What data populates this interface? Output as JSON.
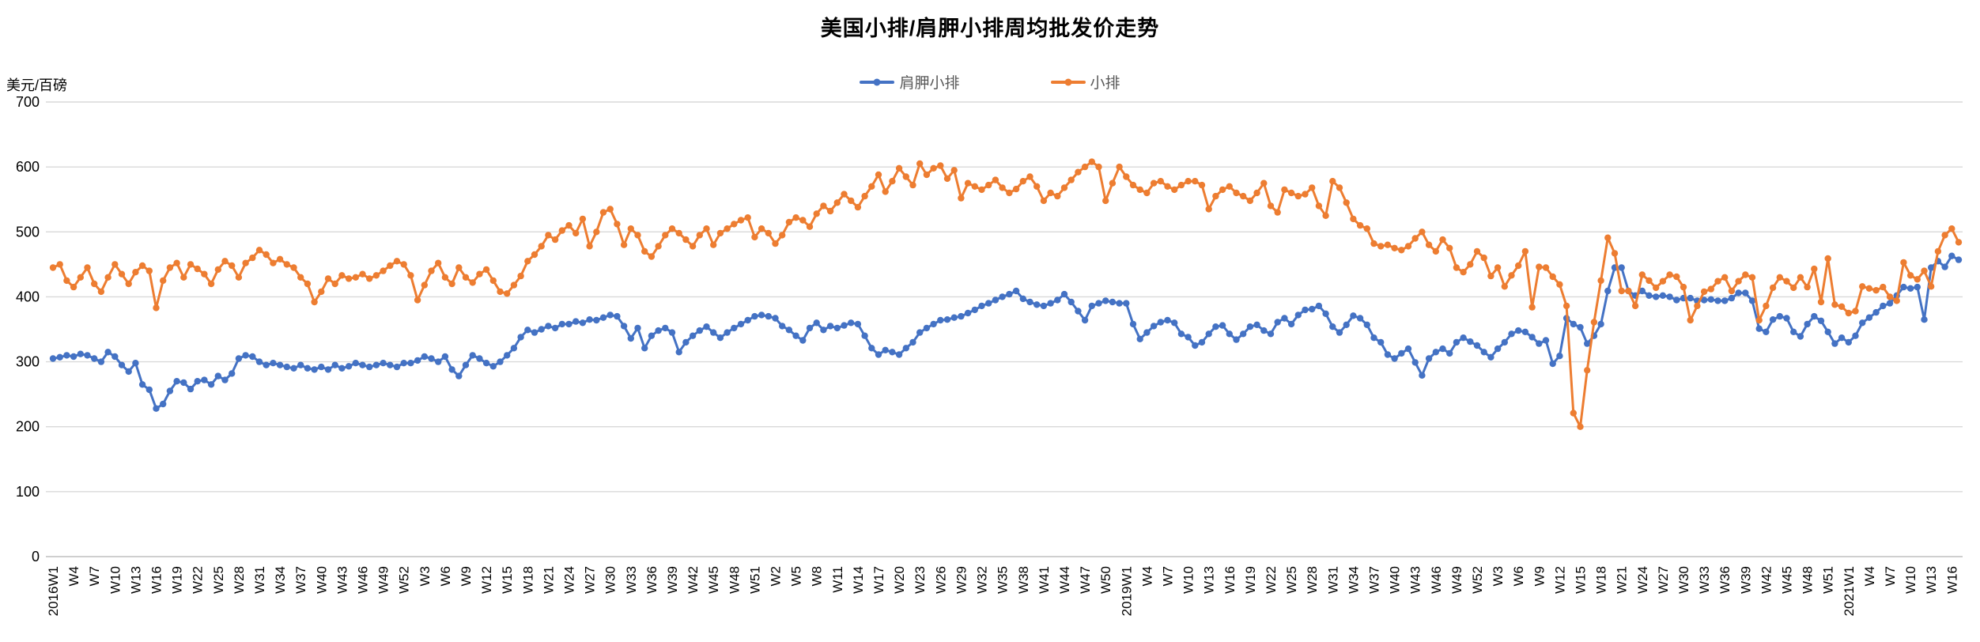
{
  "chart_data": {
    "type": "line",
    "title": "美国小排/肩胛小排周均批发价走势",
    "ylabel": "美元/百磅",
    "xlabel": "",
    "ylim": [
      0,
      700
    ],
    "ytick_interval": 100,
    "grid": "horizontal",
    "legend_position": "top-center",
    "x_tick_every": 3,
    "x_tick_labels": [
      "2016W1",
      "W4",
      "W7",
      "W10",
      "W13",
      "W16",
      "W19",
      "W22",
      "W25",
      "W28",
      "W31",
      "W34",
      "W37",
      "W40",
      "W43",
      "W46",
      "W49",
      "W52",
      "W3",
      "W6",
      "W9",
      "W12",
      "W15",
      "W18",
      "W21",
      "W24",
      "W27",
      "W30",
      "W33",
      "W36",
      "W39",
      "W42",
      "W45",
      "W48",
      "W51",
      "W2",
      "W5",
      "W8",
      "W11",
      "W14",
      "W17",
      "W20",
      "W23",
      "W26",
      "W29",
      "W32",
      "W35",
      "W38",
      "W41",
      "W44",
      "W47",
      "W50",
      "2019W1",
      "W4",
      "W7",
      "W10",
      "W13",
      "W16",
      "W19",
      "W22",
      "W25",
      "W28",
      "W31",
      "W34",
      "W37",
      "W40",
      "W43",
      "W46",
      "W49",
      "W52",
      "W3",
      "W6",
      "W9",
      "W12",
      "W15",
      "W18",
      "W21",
      "W24",
      "W27",
      "W30",
      "W33",
      "W36",
      "W39",
      "W42",
      "W45",
      "W48",
      "W51",
      "2021W1",
      "W4",
      "W7",
      "W10",
      "W13",
      "W16"
    ],
    "series": [
      {
        "name": "肩胛小排",
        "color": "#4472C4",
        "values": [
          305,
          307,
          310,
          308,
          312,
          310,
          305,
          300,
          315,
          308,
          295,
          285,
          298,
          265,
          257,
          228,
          235,
          255,
          270,
          268,
          258,
          270,
          272,
          265,
          278,
          272,
          282,
          305,
          310,
          308,
          300,
          295,
          298,
          295,
          292,
          290,
          295,
          290,
          288,
          292,
          288,
          295,
          290,
          293,
          298,
          295,
          292,
          295,
          298,
          295,
          292,
          298,
          298,
          302,
          308,
          305,
          300,
          308,
          288,
          278,
          295,
          310,
          305,
          298,
          293,
          300,
          310,
          321,
          338,
          349,
          345,
          350,
          355,
          352,
          358,
          358,
          362,
          360,
          365,
          364,
          368,
          372,
          370,
          355,
          336,
          352,
          321,
          340,
          348,
          352,
          345,
          315,
          330,
          340,
          348,
          354,
          345,
          337,
          345,
          352,
          358,
          364,
          370,
          372,
          370,
          367,
          355,
          349,
          340,
          333,
          352,
          360,
          349,
          355,
          352,
          356,
          360,
          358,
          340,
          321,
          311,
          318,
          315,
          311,
          321,
          330,
          345,
          352,
          358,
          364,
          365,
          368,
          370,
          375,
          380,
          386,
          390,
          395,
          400,
          404,
          409,
          397,
          392,
          388,
          386,
          390,
          395,
          404,
          392,
          378,
          364,
          386,
          390,
          394,
          392,
          390,
          390,
          358,
          335,
          345,
          355,
          361,
          364,
          360,
          343,
          338,
          325,
          330,
          343,
          354,
          356,
          343,
          334,
          343,
          354,
          357,
          348,
          343,
          361,
          367,
          358,
          372,
          380,
          381,
          386,
          374,
          354,
          345,
          357,
          371,
          367,
          357,
          337,
          330,
          311,
          305,
          313,
          320,
          299,
          279,
          305,
          315,
          320,
          313,
          330,
          337,
          331,
          325,
          315,
          307,
          320,
          330,
          343,
          348,
          346,
          338,
          328,
          333,
          297,
          309,
          367,
          358,
          353,
          328,
          340,
          358,
          409,
          445,
          445,
          409,
          402,
          409,
          402,
          400,
          402,
          400,
          395,
          398,
          398,
          394,
          395,
          396,
          394,
          394,
          398,
          406,
          406,
          394,
          351,
          346,
          365,
          370,
          367,
          346,
          339,
          358,
          370,
          363,
          346,
          328,
          337,
          330,
          340,
          360,
          368,
          376,
          386,
          390,
          402,
          415,
          413,
          415,
          365,
          445,
          455,
          446,
          463,
          457
        ]
      },
      {
        "name": "小排",
        "color": "#ED7D31",
        "values": [
          445,
          450,
          425,
          415,
          430,
          445,
          420,
          408,
          430,
          450,
          435,
          420,
          438,
          448,
          440,
          383,
          425,
          445,
          452,
          430,
          450,
          443,
          435,
          420,
          442,
          455,
          448,
          430,
          452,
          460,
          472,
          465,
          452,
          458,
          450,
          445,
          430,
          420,
          392,
          408,
          428,
          420,
          433,
          428,
          430,
          435,
          428,
          433,
          440,
          448,
          455,
          450,
          433,
          395,
          418,
          440,
          452,
          430,
          420,
          445,
          430,
          422,
          435,
          442,
          425,
          408,
          405,
          418,
          432,
          455,
          465,
          478,
          495,
          488,
          502,
          510,
          498,
          520,
          478,
          500,
          530,
          535,
          512,
          480,
          505,
          495,
          470,
          462,
          478,
          495,
          505,
          498,
          488,
          478,
          495,
          505,
          480,
          498,
          505,
          512,
          518,
          522,
          492,
          505,
          498,
          482,
          495,
          515,
          522,
          518,
          508,
          528,
          540,
          532,
          545,
          558,
          548,
          538,
          555,
          570,
          588,
          562,
          578,
          598,
          585,
          572,
          605,
          588,
          598,
          602,
          582,
          595,
          552,
          575,
          570,
          565,
          572,
          580,
          568,
          560,
          566,
          578,
          585,
          570,
          548,
          560,
          555,
          568,
          580,
          592,
          600,
          608,
          600,
          548,
          575,
          600,
          585,
          572,
          565,
          560,
          575,
          578,
          570,
          565,
          572,
          578,
          578,
          572,
          535,
          555,
          565,
          570,
          560,
          555,
          548,
          560,
          575,
          540,
          530,
          565,
          560,
          555,
          558,
          568,
          540,
          525,
          578,
          568,
          545,
          520,
          510,
          505,
          482,
          478,
          480,
          475,
          472,
          478,
          490,
          500,
          480,
          470,
          488,
          475,
          445,
          438,
          450,
          470,
          460,
          432,
          445,
          416,
          433,
          448,
          470,
          384,
          446,
          445,
          431,
          419,
          386,
          221,
          200,
          287,
          361,
          425,
          491,
          467,
          409,
          409,
          386,
          434,
          425,
          414,
          424,
          434,
          431,
          415,
          364,
          386,
          408,
          412,
          424,
          430,
          409,
          424,
          434,
          430,
          364,
          386,
          414,
          430,
          424,
          414,
          430,
          415,
          443,
          392,
          459,
          388,
          385,
          375,
          378,
          416,
          413,
          410,
          415,
          400,
          394,
          453,
          433,
          427,
          440,
          416,
          470,
          495,
          505,
          484
        ]
      }
    ],
    "colors": {
      "gridline": "#D9D9D9",
      "axis_line": "#BFBFBF",
      "tick_text": "#000000",
      "legend_text": "#595959"
    }
  }
}
